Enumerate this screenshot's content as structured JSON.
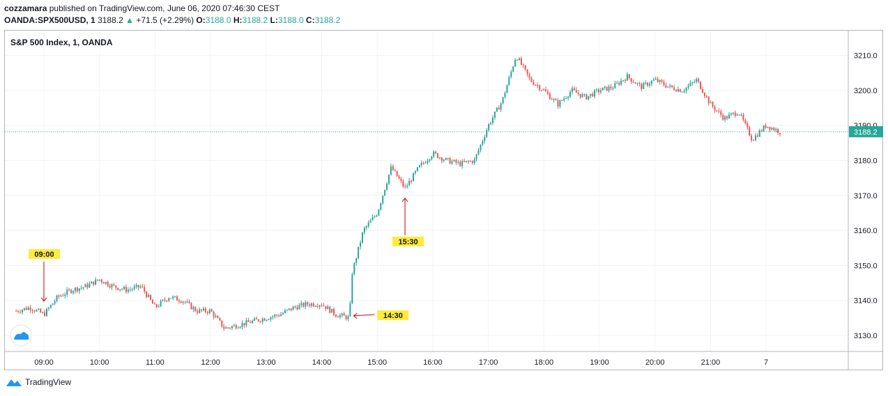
{
  "header": {
    "author": "cozzamara",
    "published_text": "published on TradingView.com, June 06, 2020 07:46:30 CEST",
    "symbol": "OANDA:SPX500USD, 1",
    "last_price": "3188.2",
    "change_arrow": "▲",
    "change": "+71.5 (+2.29%)",
    "o_label": "O:",
    "o_value": "3188.0",
    "h_label": "H:",
    "h_value": "3188.2",
    "l_label": "L:",
    "l_value": "3188.0",
    "c_label": "C:",
    "c_value": "3188.2"
  },
  "chart_title": "S&P 500 Index, 1, OANDA",
  "footer": {
    "brand": "TradingView"
  },
  "colors": {
    "up": "#26a69a",
    "down": "#ef5350",
    "price_line": "#26a69a",
    "grid": "#f0f3fa",
    "annotation_bg": "#ffeb3b",
    "arrow": "#cc0000"
  },
  "chart_data": {
    "type": "candlestick",
    "title": "S&P 500 Index, 1, OANDA",
    "x_ticks": [
      "09:00",
      "10:00",
      "11:00",
      "12:00",
      "13:00",
      "14:00",
      "15:00",
      "16:00",
      "17:00",
      "18:00",
      "19:00",
      "20:00",
      "21:00",
      "7"
    ],
    "y_ticks": [
      "3210.0",
      "3200.0",
      "3190.0",
      "3180.0",
      "3170.0",
      "3160.0",
      "3150.0",
      "3140.0",
      "3130.0"
    ],
    "ylim": [
      3125,
      3217
    ],
    "last_price": 3188.2,
    "last_price_label": "3188.2",
    "close_path": [
      [
        8.5,
        3137
      ],
      [
        8.75,
        3138
      ],
      [
        9.0,
        3136
      ],
      [
        9.25,
        3141
      ],
      [
        9.5,
        3143
      ],
      [
        9.75,
        3144
      ],
      [
        10.0,
        3146
      ],
      [
        10.25,
        3144
      ],
      [
        10.5,
        3143
      ],
      [
        10.75,
        3144
      ],
      [
        11.0,
        3138
      ],
      [
        11.25,
        3141
      ],
      [
        11.5,
        3140
      ],
      [
        11.75,
        3137
      ],
      [
        12.0,
        3137
      ],
      [
        12.25,
        3132
      ],
      [
        12.5,
        3133
      ],
      [
        12.75,
        3134
      ],
      [
        13.0,
        3135
      ],
      [
        13.25,
        3136
      ],
      [
        13.5,
        3138
      ],
      [
        13.75,
        3139
      ],
      [
        14.0,
        3139
      ],
      [
        14.25,
        3136
      ],
      [
        14.5,
        3135
      ],
      [
        14.55,
        3148
      ],
      [
        14.75,
        3160
      ],
      [
        15.0,
        3165
      ],
      [
        15.25,
        3178
      ],
      [
        15.5,
        3172
      ],
      [
        15.75,
        3178
      ],
      [
        16.0,
        3182
      ],
      [
        16.25,
        3180
      ],
      [
        16.5,
        3179
      ],
      [
        16.75,
        3180
      ],
      [
        17.0,
        3190
      ],
      [
        17.25,
        3197
      ],
      [
        17.5,
        3210
      ],
      [
        17.75,
        3203
      ],
      [
        18.0,
        3200
      ],
      [
        18.25,
        3196
      ],
      [
        18.5,
        3200
      ],
      [
        18.75,
        3198
      ],
      [
        19.0,
        3200
      ],
      [
        19.25,
        3201
      ],
      [
        19.5,
        3204
      ],
      [
        19.75,
        3201
      ],
      [
        20.0,
        3203
      ],
      [
        20.25,
        3201
      ],
      [
        20.5,
        3200
      ],
      [
        20.75,
        3203
      ],
      [
        21.0,
        3196
      ],
      [
        21.25,
        3192
      ],
      [
        21.5,
        3194
      ],
      [
        21.75,
        3186
      ],
      [
        22.0,
        3190
      ],
      [
        22.25,
        3188.2
      ]
    ],
    "annotations": [
      {
        "label": "09:00",
        "time": 9.0,
        "price": 3139
      },
      {
        "label": "15:30",
        "time": 15.5,
        "price": 3172
      },
      {
        "label": "14:30",
        "time": 14.5,
        "price": 3135
      }
    ]
  }
}
